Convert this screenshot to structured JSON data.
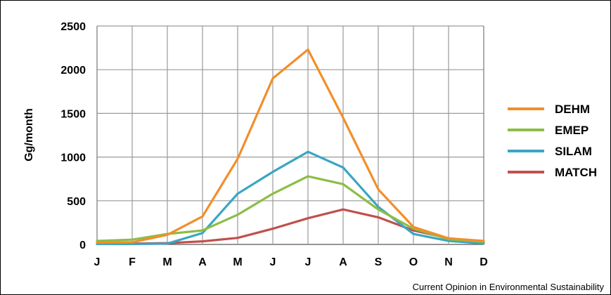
{
  "chart_data": {
    "type": "line",
    "title": "",
    "xlabel": "",
    "ylabel": "Gg/month",
    "categories": [
      "J",
      "F",
      "M",
      "A",
      "M",
      "J",
      "J",
      "A",
      "S",
      "O",
      "N",
      "D"
    ],
    "ylim": [
      0,
      2500
    ],
    "yticks": [
      0,
      500,
      1000,
      1500,
      2000,
      2500
    ],
    "grid": true,
    "legend": "right",
    "series": [
      {
        "name": "DEHM",
        "color": "#f28e2b",
        "values": [
          20,
          25,
          110,
          320,
          980,
          1900,
          2230,
          1450,
          630,
          200,
          70,
          40
        ]
      },
      {
        "name": "EMEP",
        "color": "#8cbd45",
        "values": [
          40,
          55,
          120,
          160,
          340,
          580,
          780,
          690,
          400,
          180,
          60,
          30
        ]
      },
      {
        "name": "SILAM",
        "color": "#3aa6c2",
        "values": [
          5,
          5,
          10,
          130,
          580,
          830,
          1060,
          880,
          430,
          120,
          40,
          10
        ]
      },
      {
        "name": "MATCH",
        "color": "#c0504d",
        "values": [
          10,
          10,
          15,
          35,
          75,
          180,
          300,
          400,
          310,
          160,
          70,
          30
        ]
      }
    ]
  },
  "footer": {
    "credit": "Current Opinion in Environmental Sustainability"
  }
}
